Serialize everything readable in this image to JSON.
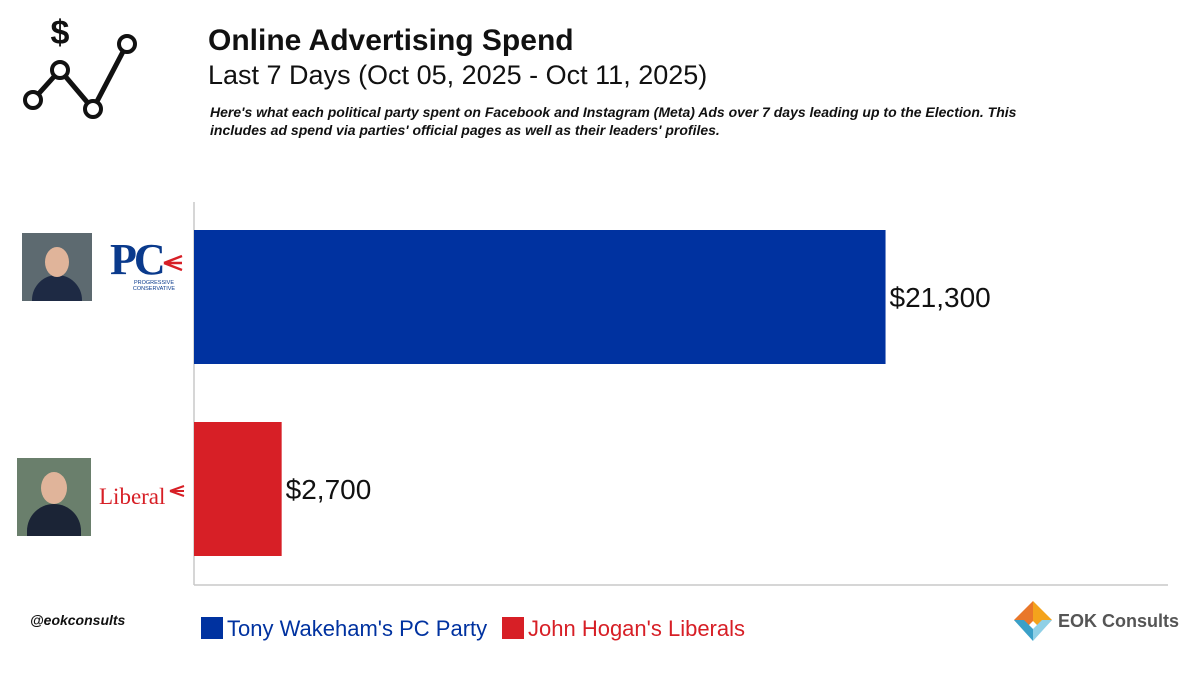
{
  "header": {
    "title": "Online Advertising Spend",
    "subtitle": "Last 7 Days (Oct 05, 2025 - Oct 11, 2025)",
    "note": "Here's what each political party spent on Facebook and Instagram (Meta) Ads over 7 days leading up to the Election. This includes ad spend via parties' official pages as well as their leaders' profiles."
  },
  "chart_data": {
    "type": "bar",
    "orientation": "horizontal",
    "title": "Online Advertising Spend",
    "categories": [
      "Tony Wakeham's PC Party",
      "John Hogan's Liberals"
    ],
    "values": [
      21300,
      2700
    ],
    "data_labels": [
      "$21,300",
      "$2,700"
    ],
    "colors": [
      "#0032a0",
      "#d71f26"
    ],
    "xlim": [
      0,
      30000
    ],
    "xlabel": "",
    "ylabel": "",
    "grid": false,
    "legend_position": "bottom"
  },
  "logos": {
    "pc_letters": "PC",
    "pc_subtext": "PROGRESSIVE CONSERVATIVE",
    "liberal_text": "Liberal"
  },
  "footer": {
    "handle": "@eokconsults",
    "brand": "EOK Consults"
  }
}
